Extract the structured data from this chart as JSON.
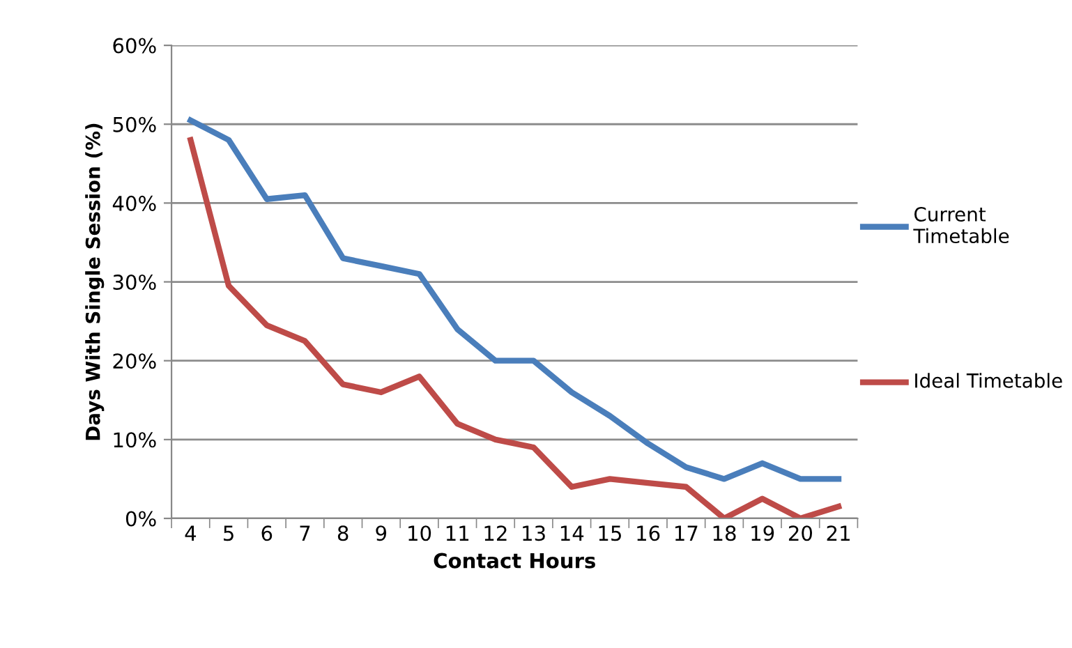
{
  "chart_data": {
    "type": "line",
    "xlabel": "Contact Hours",
    "ylabel": "Days With Single Session (%)",
    "categories": [
      "4",
      "5",
      "6",
      "7",
      "8",
      "9",
      "10",
      "11",
      "12",
      "13",
      "14",
      "15",
      "16",
      "17",
      "18",
      "19",
      "20",
      "21"
    ],
    "series": [
      {
        "name": "Current Timetable",
        "color": "#4a7ebb",
        "values": [
          50.5,
          48,
          40.5,
          41,
          33,
          32,
          31,
          24,
          20,
          20,
          16,
          13,
          9.5,
          6.5,
          5,
          7,
          5,
          5
        ]
      },
      {
        "name": "Ideal Timetable",
        "color": "#be4b48",
        "values": [
          48,
          29.5,
          24.5,
          22.5,
          17,
          16,
          18,
          12,
          10,
          9,
          4,
          5,
          4.5,
          4,
          0,
          2.5,
          0,
          1.5
        ]
      }
    ],
    "ylim": [
      0,
      60
    ],
    "yticks": [
      {
        "value": 0,
        "label": "0%"
      },
      {
        "value": 10,
        "label": "10%"
      },
      {
        "value": 20,
        "label": "20%"
      },
      {
        "value": 30,
        "label": "30%"
      },
      {
        "value": 40,
        "label": "40%"
      },
      {
        "value": 50,
        "label": "50%"
      },
      {
        "value": 60,
        "label": "60%"
      }
    ],
    "grid": "y",
    "legend": "right",
    "marker": "none",
    "line_style": "solid"
  }
}
